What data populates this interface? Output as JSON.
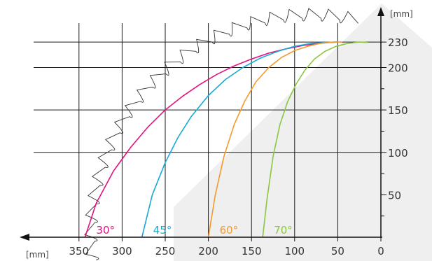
{
  "chart_data": {
    "type": "line",
    "title": "",
    "xlabel": "[mm]",
    "ylabel": "[mm]",
    "x_reversed": true,
    "xlim": [
      0,
      400
    ],
    "ylim": [
      0,
      250
    ],
    "x_ticks": [
      350,
      300,
      250,
      200,
      150,
      100,
      50,
      0
    ],
    "x_tick_labels": [
      "350",
      "300",
      "250",
      "200",
      "150",
      "100",
      "50",
      "0"
    ],
    "y_ticks": [
      50,
      100,
      150,
      200,
      230
    ],
    "y_tick_labels": [
      "50",
      "100",
      "150",
      "200",
      "230"
    ],
    "grid": true,
    "series": [
      {
        "name": "30°",
        "color": "#e2137f",
        "x": [
          343,
          330,
          310,
          290,
          270,
          250,
          230,
          210,
          190,
          170,
          150,
          130,
          110,
          90,
          75,
          60,
          50
        ],
        "y": [
          0,
          40,
          78,
          106,
          130,
          150,
          166,
          180,
          192,
          202,
          210,
          217,
          222,
          226,
          228,
          229.5,
          230
        ]
      },
      {
        "name": "45°",
        "color": "#16abd6",
        "x": [
          277,
          265,
          250,
          235,
          220,
          200,
          180,
          160,
          140,
          120,
          100,
          80,
          65,
          50
        ],
        "y": [
          0,
          50,
          88,
          118,
          142,
          167,
          186,
          200,
          211,
          219,
          225,
          228.5,
          229.5,
          230
        ]
      },
      {
        "name": "60°",
        "color": "#f39a2b",
        "x": [
          200,
          192,
          182,
          170,
          158,
          145,
          130,
          115,
          100,
          85,
          70,
          55,
          45
        ],
        "y": [
          0,
          50,
          95,
          133,
          160,
          183,
          200,
          212,
          220,
          225,
          228.5,
          230,
          230
        ]
      },
      {
        "name": "70°",
        "color": "#8cc63f",
        "x": [
          137,
          132,
          125,
          117,
          108,
          98,
          88,
          77,
          65,
          52,
          38,
          25,
          15
        ],
        "y": [
          0,
          45,
          95,
          133,
          160,
          181,
          197,
          210,
          219,
          225,
          228.5,
          230,
          229.5
        ]
      }
    ],
    "labels": [
      {
        "text": "30°",
        "series": "30°"
      },
      {
        "text": "45°",
        "series": "45°"
      },
      {
        "text": "60°",
        "series": "60°"
      },
      {
        "text": "70°",
        "series": "70°"
      }
    ]
  }
}
